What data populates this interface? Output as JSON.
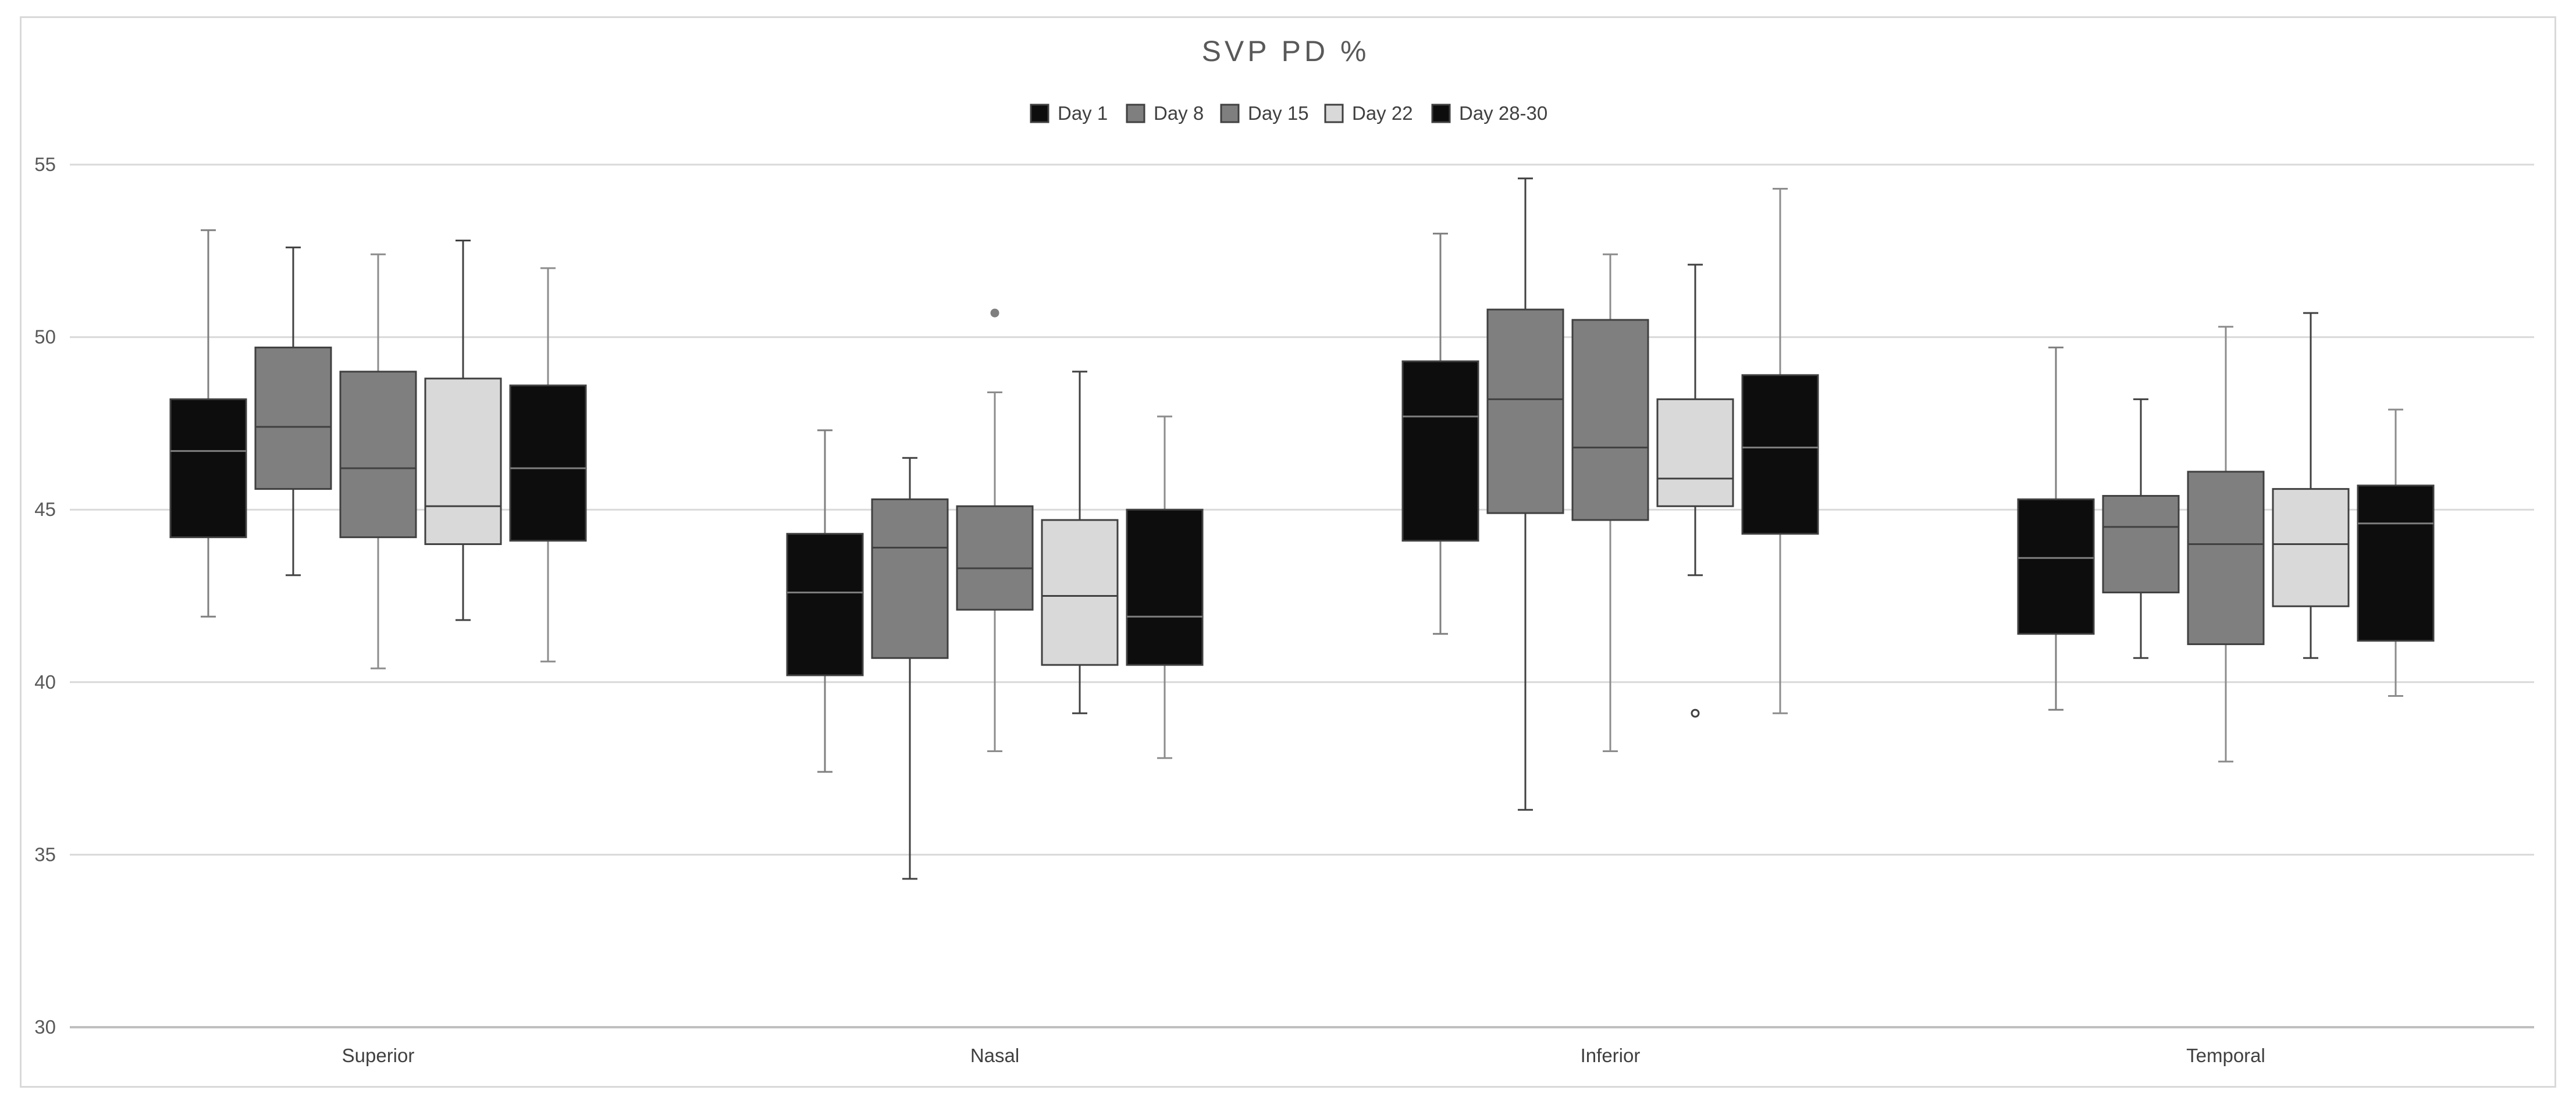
{
  "chart_data": {
    "type": "boxplot",
    "title": "SVP PD %",
    "xlabel": "",
    "ylabel": "",
    "ylim": [
      30,
      55
    ],
    "yticks": [
      30,
      35,
      40,
      45,
      50,
      55
    ],
    "grid": true,
    "legend_position": "top-center",
    "categories": [
      "Superior",
      "Nasal",
      "Inferior",
      "Temporal"
    ],
    "series": [
      {
        "name": "Day 1",
        "color": "#0d0d0d",
        "whisker_color": "#7f7f7f",
        "boxes": [
          {
            "min": 41.9,
            "q1": 44.2,
            "median": 46.7,
            "q3": 48.2,
            "max": 53.1,
            "outliers": []
          },
          {
            "min": 37.4,
            "q1": 40.2,
            "median": 42.6,
            "q3": 44.3,
            "max": 47.3,
            "outliers": []
          },
          {
            "min": 41.4,
            "q1": 44.1,
            "median": 47.7,
            "q3": 49.3,
            "max": 53.0,
            "outliers": []
          },
          {
            "min": 39.2,
            "q1": 41.4,
            "median": 43.6,
            "q3": 45.3,
            "max": 49.7,
            "outliers": []
          }
        ]
      },
      {
        "name": "Day 8",
        "color": "#7f7f7f",
        "whisker_color": "#404040",
        "boxes": [
          {
            "min": 43.1,
            "q1": 45.6,
            "median": 47.4,
            "q3": 49.7,
            "max": 52.6,
            "outliers": []
          },
          {
            "min": 34.3,
            "q1": 40.7,
            "median": 43.9,
            "q3": 45.3,
            "max": 46.5,
            "outliers": []
          },
          {
            "min": 36.3,
            "q1": 44.9,
            "median": 48.2,
            "q3": 50.8,
            "max": 54.6,
            "outliers": []
          },
          {
            "min": 40.7,
            "q1": 42.6,
            "median": 44.5,
            "q3": 45.4,
            "max": 48.2,
            "outliers": []
          }
        ]
      },
      {
        "name": "Day 15",
        "color": "#7f7f7f",
        "whisker_color": "#8c8c8c",
        "boxes": [
          {
            "min": 40.4,
            "q1": 44.2,
            "median": 46.2,
            "q3": 49.0,
            "max": 52.4,
            "outliers": []
          },
          {
            "min": 38.0,
            "q1": 42.1,
            "median": 43.3,
            "q3": 45.1,
            "max": 48.4,
            "outliers": [
              50.7
            ]
          },
          {
            "min": 38.0,
            "q1": 44.7,
            "median": 46.8,
            "q3": 50.5,
            "max": 52.4,
            "outliers": []
          },
          {
            "min": 37.7,
            "q1": 41.1,
            "median": 44.0,
            "q3": 46.1,
            "max": 50.3,
            "outliers": []
          }
        ]
      },
      {
        "name": "Day 22",
        "color": "#d9d9d9",
        "whisker_color": "#404040",
        "boxes": [
          {
            "min": 41.8,
            "q1": 44.0,
            "median": 45.1,
            "q3": 48.8,
            "max": 52.8,
            "outliers": []
          },
          {
            "min": 39.1,
            "q1": 40.5,
            "median": 42.5,
            "q3": 44.7,
            "max": 49.0,
            "outliers": []
          },
          {
            "min": 43.1,
            "q1": 45.1,
            "median": 45.9,
            "q3": 48.2,
            "max": 52.1,
            "outliers": [
              39.1
            ]
          },
          {
            "min": 40.7,
            "q1": 42.2,
            "median": 44.0,
            "q3": 45.6,
            "max": 50.7,
            "outliers": []
          }
        ]
      },
      {
        "name": "Day 28-30",
        "color": "#0d0d0d",
        "whisker_color": "#8c8c8c",
        "boxes": [
          {
            "min": 40.6,
            "q1": 44.1,
            "median": 46.2,
            "q3": 48.6,
            "max": 52.0,
            "outliers": []
          },
          {
            "min": 37.8,
            "q1": 40.5,
            "median": 41.9,
            "q3": 45.0,
            "max": 47.7,
            "outliers": []
          },
          {
            "min": 39.1,
            "q1": 44.3,
            "median": 46.8,
            "q3": 48.9,
            "max": 54.3,
            "outliers": []
          },
          {
            "min": 39.6,
            "q1": 41.2,
            "median": 44.6,
            "q3": 45.7,
            "max": 47.9,
            "outliers": []
          }
        ]
      }
    ]
  }
}
